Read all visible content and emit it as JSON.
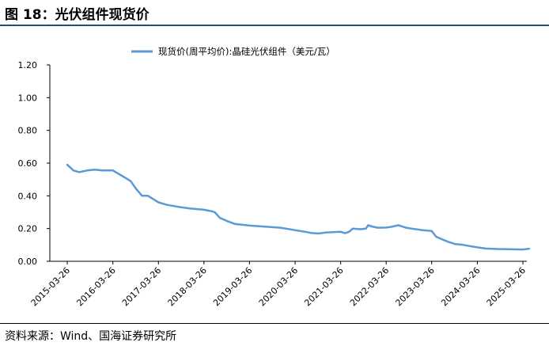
{
  "figure": {
    "title": "图 18：光伏组件现货价",
    "source": "资料来源：Wind、国海证券研究所"
  },
  "chart_data": {
    "type": "line",
    "title": "",
    "xlabel": "",
    "ylabel": "",
    "ylim": [
      0,
      1.2
    ],
    "y_ticks": [
      "0.00",
      "0.20",
      "0.40",
      "0.60",
      "0.80",
      "1.00",
      "1.20"
    ],
    "x_ticks": [
      "2015-03-26",
      "2016-03-26",
      "2017-03-26",
      "2018-03-26",
      "2019-03-26",
      "2020-03-26",
      "2021-03-26",
      "2022-03-26",
      "2023-03-26",
      "2024-03-26",
      "2025-03-26"
    ],
    "legend_position": "top-center",
    "grid": false,
    "color": "#5b9bd5",
    "series": [
      {
        "name": "现货价(周平均价):晶硅光伏组件（美元/瓦）",
        "x": [
          "2015-03-26",
          "2015-05-15",
          "2015-07-01",
          "2015-09-01",
          "2015-11-01",
          "2016-01-01",
          "2016-03-26",
          "2016-06-01",
          "2016-08-15",
          "2016-10-01",
          "2016-11-15",
          "2017-01-01",
          "2017-03-26",
          "2017-06-01",
          "2017-09-01",
          "2017-12-01",
          "2018-03-26",
          "2018-06-01",
          "2018-06-20",
          "2018-08-01",
          "2018-10-01",
          "2018-12-01",
          "2019-03-26",
          "2019-06-01",
          "2019-09-01",
          "2019-12-01",
          "2020-03-26",
          "2020-06-01",
          "2020-08-01",
          "2020-10-01",
          "2020-12-01",
          "2021-03-26",
          "2021-05-01",
          "2021-06-01",
          "2021-07-01",
          "2021-09-01",
          "2021-10-15",
          "2021-11-01",
          "2021-12-01",
          "2022-01-15",
          "2022-03-26",
          "2022-05-01",
          "2022-07-01",
          "2022-09-01",
          "2022-10-15",
          "2022-12-01",
          "2023-01-15",
          "2023-03-26",
          "2023-05-01",
          "2023-06-15",
          "2023-08-01",
          "2023-10-01",
          "2023-12-01",
          "2024-03-26",
          "2024-06-01",
          "2024-09-01",
          "2024-12-01",
          "2025-03-26",
          "2025-05-15"
        ],
        "values": [
          0.59,
          0.555,
          0.545,
          0.555,
          0.56,
          0.555,
          0.555,
          0.525,
          0.49,
          0.44,
          0.4,
          0.4,
          0.36,
          0.345,
          0.333,
          0.323,
          0.315,
          0.305,
          0.3,
          0.265,
          0.245,
          0.228,
          0.218,
          0.215,
          0.21,
          0.205,
          0.19,
          0.182,
          0.173,
          0.17,
          0.176,
          0.18,
          0.172,
          0.18,
          0.2,
          0.196,
          0.2,
          0.22,
          0.213,
          0.205,
          0.206,
          0.21,
          0.22,
          0.205,
          0.2,
          0.195,
          0.19,
          0.185,
          0.15,
          0.135,
          0.12,
          0.105,
          0.1,
          0.085,
          0.078,
          0.075,
          0.074,
          0.072,
          0.077
        ]
      }
    ]
  }
}
